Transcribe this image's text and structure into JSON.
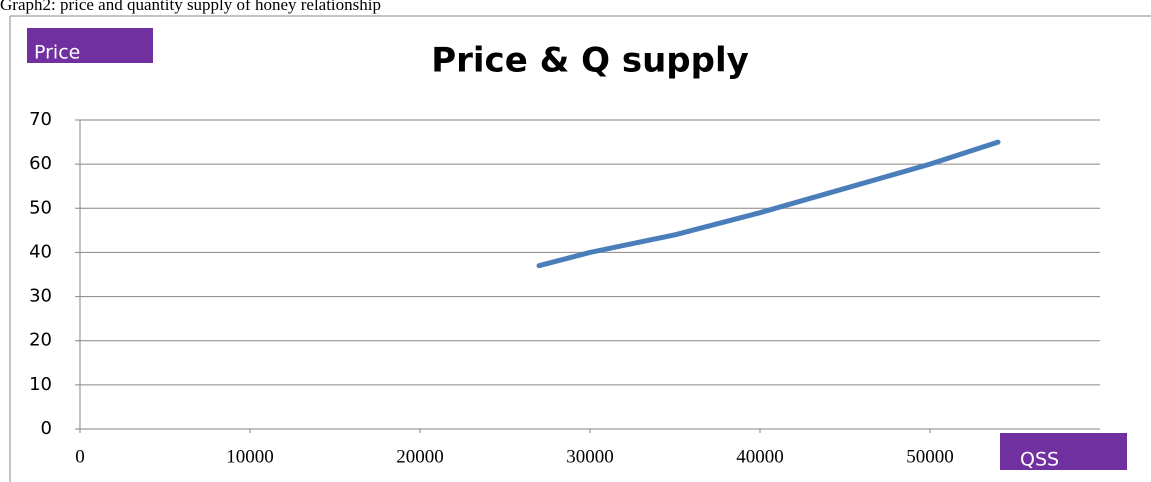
{
  "caption": "Graph2: price and quantity supply of honey relationship",
  "chart_data": {
    "type": "line",
    "title": "Price & Q supply",
    "y_label": "Price",
    "x_label": "QSS",
    "x": [
      27000,
      30000,
      35000,
      40000,
      45000,
      50000,
      54000
    ],
    "series": [
      {
        "name": "Price",
        "color": "#4a7ebb",
        "values": [
          37,
          40,
          44,
          49,
          54.5,
          60,
          65
        ]
      }
    ],
    "xlim": [
      0,
      54000
    ],
    "xticks": [
      0,
      10000,
      20000,
      30000,
      40000,
      50000
    ],
    "ylim": [
      0,
      70
    ],
    "yticks": [
      0,
      10,
      20,
      30,
      40,
      50,
      60,
      70
    ],
    "grid": true,
    "label_color": "#7030a0"
  }
}
